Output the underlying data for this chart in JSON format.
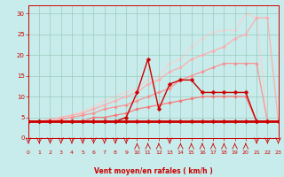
{
  "xlabel": "Vent moyen/en rafales ( km/h )",
  "xlim": [
    0,
    23
  ],
  "ylim": [
    0,
    32
  ],
  "yticks": [
    0,
    5,
    10,
    15,
    20,
    25,
    30
  ],
  "xticks": [
    0,
    1,
    2,
    3,
    4,
    5,
    6,
    7,
    8,
    9,
    10,
    11,
    12,
    13,
    14,
    15,
    16,
    17,
    18,
    19,
    20,
    21,
    22,
    23
  ],
  "bg_color": "#c8ecec",
  "grid_color": "#99ccbb",
  "series": [
    {
      "x": [
        0,
        1,
        2,
        3,
        4,
        5,
        6,
        7,
        8,
        9,
        10,
        11,
        12,
        13,
        14,
        15,
        16,
        17,
        18,
        19,
        20,
        21,
        22,
        23
      ],
      "y": [
        4,
        4,
        4,
        4,
        4,
        4,
        4,
        4,
        4,
        4,
        4,
        4,
        4,
        4,
        4,
        4,
        4,
        4,
        4,
        4,
        4,
        4,
        4,
        4
      ],
      "color": "#cc0000",
      "linewidth": 2.0,
      "marker": "D",
      "markersize": 2.5,
      "alpha": 1.0,
      "zorder": 5
    },
    {
      "x": [
        0,
        1,
        2,
        3,
        4,
        5,
        6,
        7,
        8,
        9,
        10,
        11,
        12,
        13,
        14,
        15,
        16,
        17,
        18,
        19,
        20,
        21,
        22,
        23
      ],
      "y": [
        4,
        4,
        4.5,
        5,
        5.5,
        6,
        7,
        8,
        9,
        10,
        11,
        13,
        14,
        16,
        17,
        19,
        20,
        21,
        22,
        24,
        25,
        29,
        29,
        4
      ],
      "color": "#ffaaaa",
      "linewidth": 1.0,
      "marker": "D",
      "markersize": 2,
      "alpha": 0.85,
      "zorder": 2
    },
    {
      "x": [
        0,
        1,
        2,
        3,
        4,
        5,
        6,
        7,
        8,
        9,
        10,
        11,
        12,
        13,
        14,
        15,
        16,
        17,
        18,
        19,
        20,
        21,
        22,
        23
      ],
      "y": [
        4,
        4,
        4,
        4.5,
        5,
        5.5,
        6,
        7,
        7.5,
        8,
        9,
        10,
        11,
        12,
        14,
        15,
        16,
        17,
        18,
        18,
        18,
        18,
        4,
        4
      ],
      "color": "#ff8888",
      "linewidth": 1.0,
      "marker": "D",
      "markersize": 2,
      "alpha": 0.8,
      "zorder": 3
    },
    {
      "x": [
        0,
        1,
        2,
        3,
        4,
        5,
        6,
        7,
        8,
        9,
        10,
        11,
        12,
        13,
        14,
        15,
        16,
        17,
        18,
        19,
        20,
        21,
        22,
        23
      ],
      "y": [
        4,
        4,
        4,
        4,
        4,
        4,
        4,
        4,
        4,
        5,
        11,
        19,
        7,
        13,
        14,
        14,
        11,
        11,
        11,
        11,
        11,
        4,
        4,
        4
      ],
      "color": "#cc0000",
      "linewidth": 1.0,
      "marker": "D",
      "markersize": 2.5,
      "alpha": 1.0,
      "zorder": 6
    },
    {
      "x": [
        0,
        1,
        2,
        3,
        4,
        5,
        6,
        7,
        8,
        9,
        10,
        11,
        12,
        13,
        14,
        15,
        16,
        17,
        18,
        19,
        20,
        21,
        22,
        23
      ],
      "y": [
        4,
        4,
        4,
        4,
        4,
        4,
        5,
        5,
        5.5,
        6,
        7,
        7.5,
        8,
        8.5,
        9,
        9.5,
        10,
        10,
        10,
        10,
        10,
        4,
        4,
        4
      ],
      "color": "#ff6666",
      "linewidth": 1.0,
      "marker": "D",
      "markersize": 2,
      "alpha": 0.75,
      "zorder": 4
    },
    {
      "x": [
        0,
        1,
        2,
        3,
        4,
        5,
        6,
        7,
        8,
        9,
        10,
        11,
        12,
        13,
        14,
        15,
        16,
        17,
        18,
        19,
        20,
        21,
        22,
        23
      ],
      "y": [
        4,
        4,
        4,
        5,
        5.5,
        6.5,
        7.5,
        9,
        10,
        11,
        12,
        14,
        15,
        18,
        19,
        22,
        24,
        25.5,
        26,
        26,
        30,
        29,
        4,
        4
      ],
      "color": "#ffcccc",
      "linewidth": 1.0,
      "marker": "D",
      "markersize": 2,
      "alpha": 0.7,
      "zorder": 1
    }
  ],
  "wind_dirs": {
    "x": [
      0,
      1,
      2,
      3,
      4,
      5,
      6,
      7,
      8,
      9,
      10,
      11,
      12,
      13,
      14,
      15,
      16,
      17,
      18,
      19,
      20,
      21,
      22,
      23
    ],
    "dirs": [
      "d",
      "d",
      "d",
      "d",
      "d",
      "d",
      "d",
      "d",
      "d",
      "d",
      "u",
      "u",
      "u",
      "d",
      "u",
      "u",
      "u",
      "u",
      "u",
      "u",
      "u",
      "d",
      "d",
      "d"
    ]
  }
}
